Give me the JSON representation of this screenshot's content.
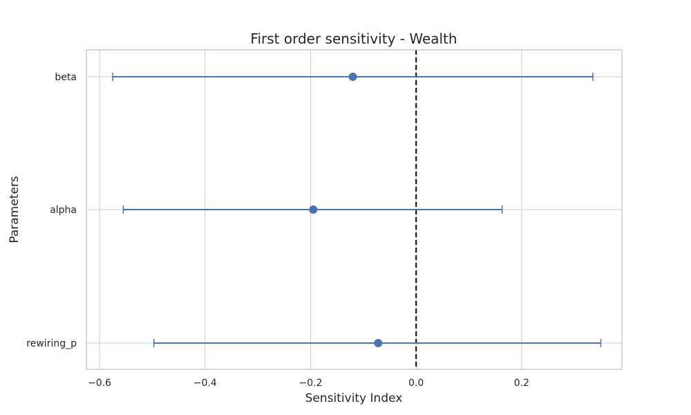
{
  "chart_data": {
    "type": "scatter",
    "title": "First order sensitivity - Wealth",
    "xlabel": "Sensitivity Index",
    "ylabel": "Parameters",
    "xlim": [
      -0.625,
      0.39
    ],
    "xticks": [
      -0.6,
      -0.4,
      -0.2,
      0.0,
      0.2
    ],
    "xtick_labels": [
      "−0.6",
      "−0.4",
      "−0.2",
      "0.0",
      "0.2"
    ],
    "categories": [
      "beta",
      "alpha",
      "rewiring_p"
    ],
    "values": [
      -0.12,
      -0.195,
      -0.072
    ],
    "error_low": [
      -0.575,
      -0.555,
      -0.497
    ],
    "error_high": [
      0.335,
      0.163,
      0.35
    ],
    "reference_line": 0.0,
    "grid": true,
    "colors": {
      "series": "#4c72b0",
      "reference": "#000000",
      "grid": "#cccccc"
    }
  }
}
